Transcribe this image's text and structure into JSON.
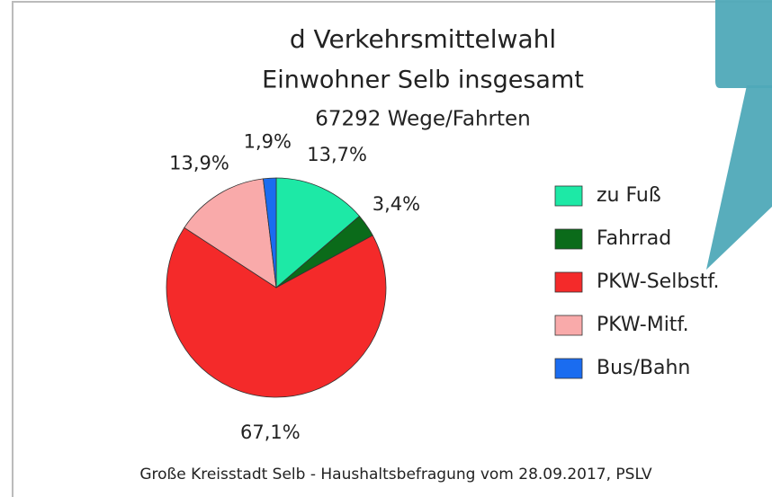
{
  "chart_data": {
    "type": "pie",
    "title": "d   Verkehrsmittelwahl",
    "subtitle": "Einwohner Selb insgesamt",
    "subtitle2": "67292 Wege/Fahrten",
    "footer": "Große Kreisstadt Selb - Haushaltsbefragung vom 28.09.2017, PSLV",
    "categories": [
      "zu Fuß",
      "Fahrrad",
      "PKW-Selbstf.",
      "PKW-Mitf.",
      "Bus/Bahn"
    ],
    "values": [
      13.7,
      3.4,
      67.1,
      13.9,
      1.9
    ],
    "value_labels": [
      "13,7%",
      "3,4%",
      "67,1%",
      "13,9%",
      "1,9%"
    ],
    "colors": [
      "#1de9a6",
      "#0b6b1a",
      "#f42a2a",
      "#f9aaaa",
      "#1a6cf0"
    ],
    "legend": "right"
  }
}
